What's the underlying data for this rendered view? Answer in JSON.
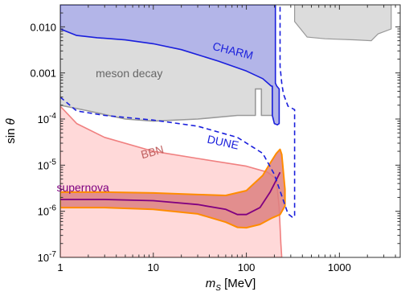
{
  "chart_data": {
    "type": "area",
    "xlabel_main": "m",
    "xlabel_sub": "S",
    "xlabel_unit": " [MeV]",
    "ylabel_main": "sin ",
    "ylabel_symbol": "θ",
    "x_scale": "log",
    "y_scale": "log",
    "xlim": [
      1,
      4500
    ],
    "ylim": [
      1e-07,
      0.03
    ],
    "grid": false,
    "x_ticks": [
      {
        "value": 1,
        "label": "1"
      },
      {
        "value": 10,
        "label": "10"
      },
      {
        "value": 100,
        "label": "100"
      },
      {
        "value": 1000,
        "label": "1000"
      }
    ],
    "y_ticks": [
      {
        "value": 0.01,
        "label": "0.010"
      },
      {
        "value": 0.001,
        "label": "0.001"
      },
      {
        "value": 0.0001,
        "base": "10",
        "exp": "-4"
      },
      {
        "value": 1e-05,
        "base": "10",
        "exp": "-5"
      },
      {
        "value": 1e-06,
        "base": "10",
        "exp": "-6"
      },
      {
        "value": 1e-07,
        "base": "10",
        "exp": "-7"
      }
    ],
    "series": [
      {
        "name": "meson decay",
        "style": "filled",
        "fill": "#dcdcdc",
        "stroke": "#999999",
        "label_color": "#666666",
        "label_at": {
          "x": 5.5,
          "y": 0.0008
        },
        "points": [
          [
            1,
            0.03
          ],
          [
            1,
            0.0002
          ],
          [
            2,
            0.00015
          ],
          [
            5,
            0.0001
          ],
          [
            10,
            9e-05
          ],
          [
            30,
            0.0001
          ],
          [
            80,
            0.00012
          ],
          [
            125,
            0.00012
          ],
          [
            125,
            0.00045
          ],
          [
            145,
            0.00045
          ],
          [
            145,
            0.00012
          ],
          [
            190,
            0.00012
          ],
          [
            190,
            0.03
          ]
        ],
        "regions": [
          [
            [
              330,
              0.03
            ],
            [
              330,
              0.013
            ],
            [
              450,
              0.006
            ],
            [
              700,
              0.0055
            ],
            [
              1500,
              0.0052
            ],
            [
              2200,
              0.005
            ],
            [
              2600,
              0.007
            ],
            [
              3600,
              0.009
            ],
            [
              3600,
              0.03
            ]
          ]
        ]
      },
      {
        "name": "CHARM",
        "style": "filled",
        "fill": "#b3b5e8",
        "stroke": "#1a1fdc",
        "label_color": "#1a1fdc",
        "label_at": {
          "x": 70,
          "y": 0.0025
        },
        "label_rotate": 14,
        "points": [
          [
            1,
            0.03
          ],
          [
            1,
            0.009
          ],
          [
            1.5,
            0.0065
          ],
          [
            2.5,
            0.0058
          ],
          [
            5,
            0.0052
          ],
          [
            10,
            0.0043
          ],
          [
            20,
            0.0032
          ],
          [
            50,
            0.0018
          ],
          [
            100,
            0.0011
          ],
          [
            150,
            0.00075
          ],
          [
            185,
            0.00052
          ],
          [
            190,
            0.00052
          ],
          [
            190,
            0.00012
          ],
          [
            200,
            8e-05
          ],
          [
            215,
            7.5e-05
          ],
          [
            225,
            8e-05
          ],
          [
            225,
            0.00045
          ],
          [
            212,
            0.00052
          ],
          [
            205,
            0.0006
          ],
          [
            205,
            0.03
          ]
        ]
      },
      {
        "name": "DUNE",
        "style": "dashed",
        "stroke": "#1a1fdc",
        "label_color": "#1a1fdc",
        "label_at": {
          "x": 55,
          "y": 2.6e-05
        },
        "label_rotate": 12,
        "points": [
          [
            1,
            0.0003
          ],
          [
            1.5,
            0.00015
          ],
          [
            3,
            0.00012
          ],
          [
            10,
            9.5e-05
          ],
          [
            30,
            7e-05
          ],
          [
            80,
            4e-05
          ],
          [
            150,
            1.8e-05
          ],
          [
            200,
            6.3e-06
          ],
          [
            280,
            8.8e-07
          ],
          [
            310,
            7.5e-07
          ],
          [
            330,
            7.5e-07
          ],
          [
            330,
            0.00016
          ],
          [
            280,
            0.00019
          ],
          [
            250,
            0.00035
          ],
          [
            240,
            0.0006
          ],
          [
            230,
            0.0014
          ],
          [
            230,
            0.03
          ]
        ]
      },
      {
        "name": "BBN",
        "style": "filled",
        "fill": "#ffd9d9",
        "stroke": "#f08080",
        "label_color": "#c06060",
        "label_at": {
          "x": 10,
          "y": 1.6e-05
        },
        "label_rotate": -15,
        "points": [
          [
            1,
            0.00019
          ],
          [
            1.5,
            8e-05
          ],
          [
            3,
            4e-05
          ],
          [
            10,
            2e-05
          ],
          [
            30,
            1.4e-05
          ],
          [
            100,
            9.5e-06
          ],
          [
            170,
            7e-06
          ],
          [
            210,
            5e-06
          ],
          [
            225,
            1.2e-06
          ],
          [
            235,
            2e-07
          ],
          [
            240,
            1e-07
          ],
          [
            1,
            1e-07
          ]
        ]
      },
      {
        "name": "supernova",
        "style": "band",
        "fill": "#dd8080",
        "stroke": "#ff8c00",
        "center_color": "#800080",
        "label_color": "#800080",
        "label_at": {
          "x": 1.75,
          "y": 2.7e-06
        },
        "upper": [
          [
            1,
            2.6e-06
          ],
          [
            3,
            2.6e-06
          ],
          [
            10,
            2.5e-06
          ],
          [
            30,
            2.3e-06
          ],
          [
            60,
            2.2e-06
          ],
          [
            100,
            2.8e-06
          ],
          [
            150,
            6e-06
          ],
          [
            180,
            1.1e-05
          ],
          [
            210,
            1.8e-05
          ],
          [
            230,
            2.2e-05
          ]
        ],
        "lower": [
          [
            1,
            1.2e-06
          ],
          [
            3,
            1.2e-06
          ],
          [
            10,
            1.1e-06
          ],
          [
            30,
            8.8e-07
          ],
          [
            60,
            5.8e-07
          ],
          [
            80,
            4.5e-07
          ],
          [
            100,
            4.4e-07
          ],
          [
            140,
            5.2e-07
          ],
          [
            190,
            7.2e-07
          ],
          [
            230,
            8.5e-07
          ],
          [
            260,
            1.3e-06
          ],
          [
            260,
            3e-06
          ],
          [
            240,
            1.7e-05
          ],
          [
            230,
            2.2e-05
          ]
        ],
        "center": [
          [
            1,
            1.8e-06
          ],
          [
            3,
            1.8e-06
          ],
          [
            10,
            1.7e-06
          ],
          [
            30,
            1.4e-06
          ],
          [
            60,
            1.1e-06
          ],
          [
            80,
            8.5e-07
          ],
          [
            100,
            8.5e-07
          ],
          [
            140,
            1.2e-06
          ],
          [
            180,
            2.6e-06
          ],
          [
            210,
            4.8e-06
          ],
          [
            230,
            7e-06
          ]
        ]
      }
    ]
  }
}
